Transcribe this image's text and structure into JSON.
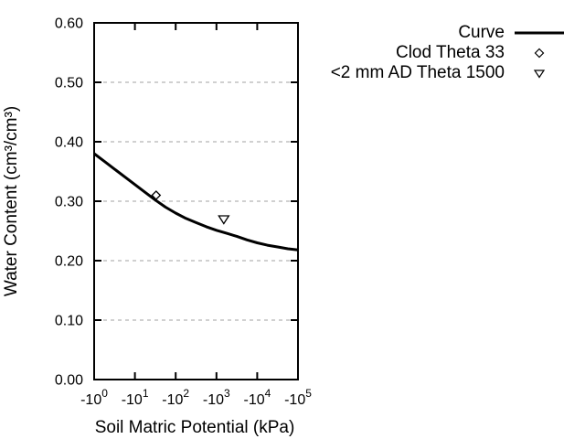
{
  "figure": {
    "background_color": "#ffffff",
    "line_color": "#000000",
    "grid_color": "#a0a0a0"
  },
  "chart_data": {
    "type": "line",
    "title": "",
    "xlabel": "Soil Matric Potential (kPa)",
    "ylabel": "Water Content (cm³/cm³)",
    "x_axis": {
      "scale": "log10 of |kPa| (negative values), decades from -10^0 to -10^5",
      "lim_decades": [
        0,
        5
      ],
      "tick_base": "-10",
      "tick_exponents": [
        "0",
        "1",
        "2",
        "3",
        "4",
        "5"
      ]
    },
    "y_axis": {
      "lim": [
        0.0,
        0.6
      ],
      "ticks": [
        {
          "value": 0.0,
          "label": "0.00"
        },
        {
          "value": 0.1,
          "label": "0.10"
        },
        {
          "value": 0.2,
          "label": "0.20"
        },
        {
          "value": 0.3,
          "label": "0.30"
        },
        {
          "value": 0.4,
          "label": "0.40"
        },
        {
          "value": 0.5,
          "label": "0.50"
        },
        {
          "value": 0.6,
          "label": "0.60"
        }
      ]
    },
    "grid": {
      "horizontal_dashed": true,
      "vertical": false
    },
    "legend": {
      "position": "outside-top-right"
    },
    "series": [
      {
        "name": "Curve",
        "kind": "line",
        "marker": "none",
        "points_decade_theta": [
          [
            0.0,
            0.38
          ],
          [
            0.25,
            0.367
          ],
          [
            0.5,
            0.354
          ],
          [
            0.75,
            0.341
          ],
          [
            1.0,
            0.328
          ],
          [
            1.25,
            0.315
          ],
          [
            1.5,
            0.302
          ],
          [
            1.75,
            0.29
          ],
          [
            2.0,
            0.28
          ],
          [
            2.25,
            0.271
          ],
          [
            2.5,
            0.264
          ],
          [
            2.75,
            0.257
          ],
          [
            3.0,
            0.251
          ],
          [
            3.25,
            0.246
          ],
          [
            3.5,
            0.241
          ],
          [
            3.75,
            0.235
          ],
          [
            4.0,
            0.23
          ],
          [
            4.25,
            0.226
          ],
          [
            4.5,
            0.223
          ],
          [
            4.75,
            0.22
          ],
          [
            5.0,
            0.218
          ]
        ]
      },
      {
        "name": "Clod Theta 33",
        "kind": "scatter",
        "marker": "open-diamond",
        "points_kpa_theta": [
          [
            -33,
            0.31
          ]
        ],
        "points_decade_theta": [
          [
            1.52,
            0.31
          ]
        ]
      },
      {
        "name": "<2 mm AD Theta 1500",
        "kind": "scatter",
        "marker": "open-triangle-down",
        "points_kpa_theta": [
          [
            -1500,
            0.27
          ]
        ],
        "points_decade_theta": [
          [
            3.18,
            0.27
          ]
        ]
      }
    ]
  }
}
